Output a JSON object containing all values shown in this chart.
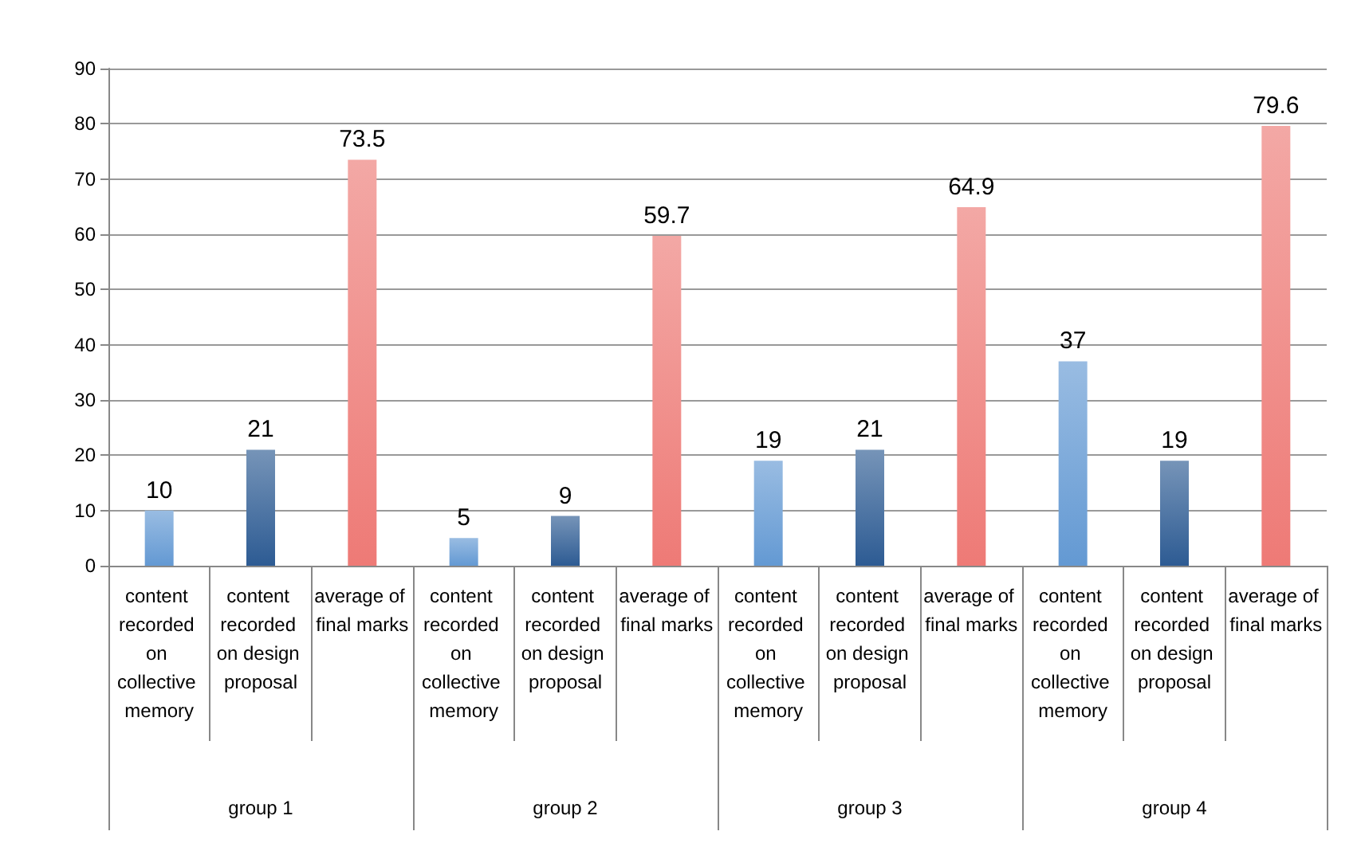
{
  "chart_data": {
    "type": "bar",
    "categories": [
      "content recorded on collective memory",
      "content recorded on design proposal",
      "average of final marks",
      "content recorded on collective memory",
      "content recorded on design proposal",
      "average of final marks",
      "content recorded on collective memory",
      "content recorded on design proposal",
      "average of final marks",
      "content recorded on collective memory",
      "content recorded on design proposal",
      "average of final marks"
    ],
    "values": [
      10,
      21,
      73.5,
      5,
      9,
      59.7,
      19,
      21,
      64.9,
      37,
      19,
      79.6
    ],
    "colors": [
      "#6399d3",
      "#2d5b93",
      "#ee7a76",
      "#6399d3",
      "#2d5b93",
      "#ee7a76",
      "#6399d3",
      "#2d5b93",
      "#ee7a76",
      "#6399d3",
      "#2d5b93",
      "#ee7a76"
    ],
    "annotations": [
      "group 1",
      "group 2",
      "group 3",
      "group 4"
    ],
    "ylim": [
      0,
      90
    ],
    "yticks": [
      0,
      10,
      20,
      30,
      40,
      50,
      60,
      70,
      80,
      90
    ],
    "grid": "y",
    "data_labels": true
  }
}
